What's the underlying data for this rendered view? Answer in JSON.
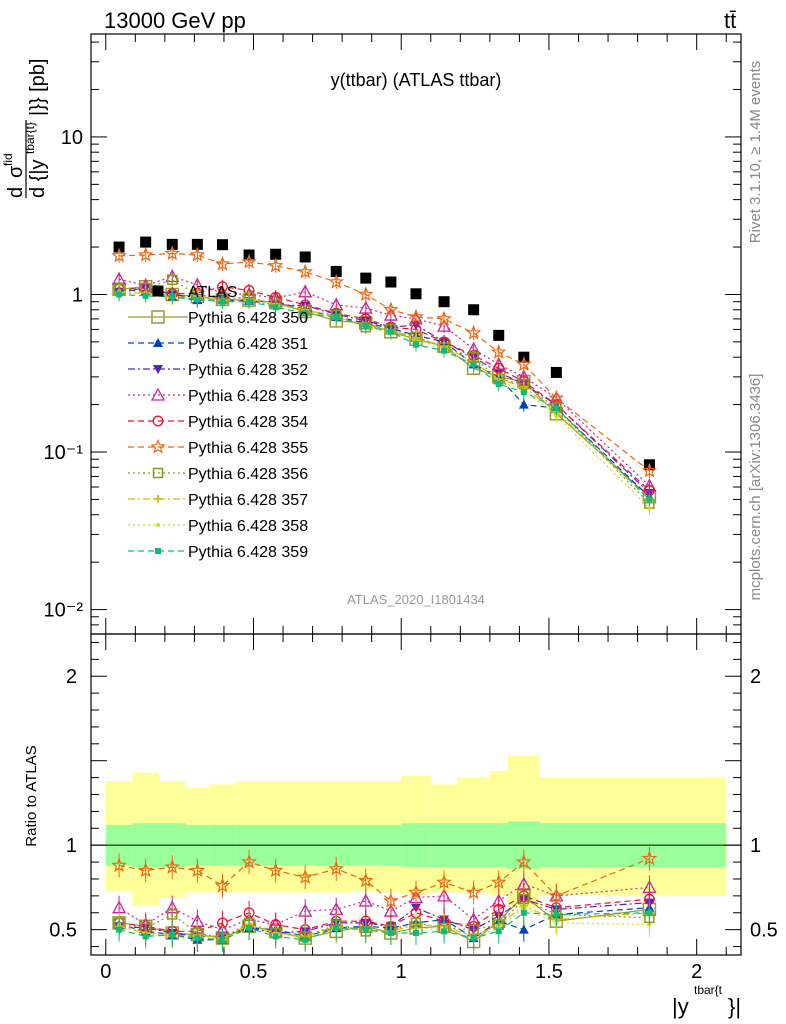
{
  "header": {
    "energy_label": "13000 GeV pp",
    "process_label": "tt̄"
  },
  "side_labels": {
    "rivet": "Rivet 3.1.10, ≥ 1.4M events",
    "source": "mcplots.cern.ch [arXiv:1306.3436]"
  },
  "chart_data": [
    {
      "type": "scatter",
      "title": "y(ttbar) (ATLAS ttbar)",
      "analysis_id": "ATLAS_2020_I1801434",
      "xlabel": "|y^{tbar{t}}|",
      "ylabel": "dσ^{fid} / d{|y^{tbar{t}}|} [pb]",
      "y_scale": "log",
      "xlim": [
        -0.05,
        2.15
      ],
      "ylim": [
        0.007,
        45
      ],
      "y_tick_labels": [
        "10⁻²",
        "10⁻¹",
        "1",
        "10"
      ],
      "x_tick_labels": [
        "0",
        "0.5",
        "1",
        "1.5",
        "2"
      ],
      "legend_position": "left-middle",
      "x": [
        0.045,
        0.135,
        0.225,
        0.31,
        0.395,
        0.485,
        0.575,
        0.675,
        0.78,
        0.88,
        0.965,
        1.05,
        1.145,
        1.245,
        1.33,
        1.415,
        1.525,
        1.84
      ],
      "series": [
        {
          "name": "ATLAS",
          "color": "#000000",
          "marker": "square-filled",
          "line": "none",
          "values": [
            2.0,
            2.15,
            2.08,
            2.08,
            2.07,
            1.78,
            1.8,
            1.73,
            1.4,
            1.27,
            1.2,
            1.01,
            0.9,
            0.8,
            0.55,
            0.4,
            0.32,
            0.083
          ]
        },
        {
          "name": "Pythia 6.428 350",
          "color": "#999933",
          "marker": "square-open-large",
          "line": "solid",
          "values": [
            1.08,
            1.12,
            1.0,
            0.97,
            0.93,
            0.92,
            0.89,
            0.78,
            0.68,
            0.66,
            0.58,
            0.52,
            0.47,
            0.34,
            0.3,
            0.28,
            0.175,
            0.052
          ]
        },
        {
          "name": "Pythia 6.428 351",
          "color": "#0044bb",
          "marker": "triangle-up-filled",
          "line": "dashed",
          "values": [
            1.07,
            1.05,
            0.97,
            0.92,
            0.92,
            0.91,
            0.9,
            0.8,
            0.72,
            0.66,
            0.61,
            0.55,
            0.5,
            0.36,
            0.3,
            0.2,
            0.19,
            0.052
          ]
        },
        {
          "name": "Pythia 6.428 352",
          "color": "#5522bb",
          "marker": "triangle-down-filled",
          "line": "dashdot",
          "values": [
            1.04,
            1.1,
            1.0,
            0.95,
            0.94,
            0.91,
            0.86,
            0.85,
            0.75,
            0.68,
            0.62,
            0.64,
            0.5,
            0.4,
            0.32,
            0.27,
            0.2,
            0.055
          ]
        },
        {
          "name": "Pythia 6.428 353",
          "color": "#cc2299",
          "marker": "triangle-up-open",
          "line": "dotted",
          "values": [
            1.25,
            1.14,
            1.3,
            1.15,
            1.02,
            1.0,
            0.95,
            1.04,
            0.86,
            0.82,
            0.74,
            0.7,
            0.63,
            0.45,
            0.36,
            0.3,
            0.22,
            0.061
          ]
        },
        {
          "name": "Pythia 6.428 354",
          "color": "#ee1133",
          "marker": "circle-open",
          "line": "dashed",
          "values": [
            1.08,
            1.1,
            1.01,
            1.02,
            1.12,
            1.06,
            0.96,
            0.86,
            0.76,
            0.7,
            0.62,
            0.6,
            0.5,
            0.41,
            0.34,
            0.28,
            0.2,
            0.057
          ]
        },
        {
          "name": "Pythia 6.428 355",
          "color": "#ee6611",
          "marker": "star-open",
          "line": "dashed",
          "values": [
            1.76,
            1.78,
            1.82,
            1.78,
            1.56,
            1.61,
            1.52,
            1.39,
            1.2,
            1.0,
            0.8,
            0.72,
            0.7,
            0.57,
            0.43,
            0.36,
            0.22,
            0.076
          ]
        },
        {
          "name": "Pythia 6.428 356",
          "color": "#889922",
          "marker": "square-open",
          "line": "dotted",
          "values": [
            1.08,
            1.1,
            1.24,
            1.0,
            0.94,
            0.96,
            0.87,
            0.79,
            0.74,
            0.62,
            0.6,
            0.54,
            0.46,
            0.4,
            0.29,
            0.27,
            0.19,
            0.047
          ]
        },
        {
          "name": "Pythia 6.428 357",
          "color": "#ddbb00",
          "marker": "plus",
          "line": "dashdot",
          "values": [
            1.03,
            1.02,
            0.95,
            0.98,
            0.92,
            0.94,
            0.87,
            0.8,
            0.72,
            0.64,
            0.59,
            0.53,
            0.47,
            0.37,
            0.29,
            0.26,
            0.18,
            0.05
          ]
        },
        {
          "name": "Pythia 6.428 358",
          "color": "#ccdd22",
          "marker": "dot",
          "line": "dotted",
          "values": [
            1.05,
            1.03,
            0.97,
            0.96,
            0.92,
            0.92,
            0.86,
            0.78,
            0.72,
            0.63,
            0.57,
            0.52,
            0.45,
            0.36,
            0.28,
            0.25,
            0.17,
            0.044
          ]
        },
        {
          "name": "Pythia 6.428 359",
          "color": "#11bb77",
          "marker": "square-filled-small",
          "line": "dashed",
          "values": [
            1.0,
            0.98,
            0.97,
            0.93,
            0.9,
            0.9,
            0.83,
            0.76,
            0.72,
            0.63,
            0.58,
            0.48,
            0.44,
            0.36,
            0.27,
            0.24,
            0.19,
            0.05
          ]
        }
      ]
    },
    {
      "type": "scatter",
      "title": "",
      "ylabel": "Ratio to ATLAS",
      "xlabel": "|y^{tbar{t}}|",
      "ylim": [
        0.35,
        2.25
      ],
      "y_tick_labels": [
        "0.5",
        "1",
        "2"
      ],
      "reference_line": 1,
      "bin_edges": [
        0.0,
        0.09,
        0.18,
        0.27,
        0.35,
        0.44,
        0.53,
        0.62,
        0.73,
        0.83,
        0.93,
        1.0,
        1.1,
        1.19,
        1.3,
        1.36,
        1.47,
        1.58,
        2.1
      ],
      "band_inner": [
        [
          0.88,
          1.12
        ],
        [
          0.87,
          1.13
        ],
        [
          0.87,
          1.13
        ],
        [
          0.88,
          1.12
        ],
        [
          0.88,
          1.12
        ],
        [
          0.88,
          1.12
        ],
        [
          0.88,
          1.12
        ],
        [
          0.88,
          1.12
        ],
        [
          0.88,
          1.12
        ],
        [
          0.88,
          1.12
        ],
        [
          0.88,
          1.12
        ],
        [
          0.87,
          1.13
        ],
        [
          0.87,
          1.13
        ],
        [
          0.87,
          1.13
        ],
        [
          0.87,
          1.13
        ],
        [
          0.86,
          1.14
        ],
        [
          0.87,
          1.13
        ],
        [
          0.87,
          1.13
        ]
      ],
      "band_outer": [
        [
          0.73,
          1.38
        ],
        [
          0.64,
          1.43
        ],
        [
          0.69,
          1.38
        ],
        [
          0.72,
          1.34
        ],
        [
          0.72,
          1.36
        ],
        [
          0.72,
          1.38
        ],
        [
          0.72,
          1.38
        ],
        [
          0.72,
          1.38
        ],
        [
          0.72,
          1.38
        ],
        [
          0.73,
          1.38
        ],
        [
          0.72,
          1.38
        ],
        [
          0.71,
          1.41
        ],
        [
          0.72,
          1.36
        ],
        [
          0.72,
          1.4
        ],
        [
          0.7,
          1.44
        ],
        [
          0.63,
          1.53
        ],
        [
          0.7,
          1.4
        ],
        [
          0.7,
          1.4
        ]
      ],
      "series_ratio": [
        [
          0.54,
          0.52,
          0.48,
          0.47,
          0.45,
          0.52,
          0.49,
          0.45,
          0.49,
          0.52,
          0.48,
          0.51,
          0.52,
          0.43,
          0.55,
          0.7,
          0.55,
          0.62
        ],
        [
          0.53,
          0.49,
          0.47,
          0.44,
          0.44,
          0.51,
          0.5,
          0.46,
          0.51,
          0.52,
          0.51,
          0.54,
          0.56,
          0.45,
          0.55,
          0.5,
          0.59,
          0.63
        ],
        [
          0.52,
          0.51,
          0.48,
          0.46,
          0.46,
          0.51,
          0.48,
          0.49,
          0.54,
          0.54,
          0.52,
          0.63,
          0.56,
          0.5,
          0.58,
          0.68,
          0.62,
          0.66
        ],
        [
          0.63,
          0.53,
          0.63,
          0.55,
          0.5,
          0.56,
          0.53,
          0.61,
          0.62,
          0.67,
          0.61,
          0.69,
          0.7,
          0.56,
          0.67,
          0.77,
          0.7,
          0.75
        ],
        [
          0.54,
          0.52,
          0.49,
          0.49,
          0.54,
          0.6,
          0.53,
          0.5,
          0.55,
          0.55,
          0.52,
          0.6,
          0.55,
          0.52,
          0.62,
          0.7,
          0.63,
          0.68
        ],
        [
          0.88,
          0.85,
          0.87,
          0.85,
          0.76,
          0.9,
          0.85,
          0.81,
          0.86,
          0.79,
          0.67,
          0.72,
          0.78,
          0.72,
          0.78,
          0.9,
          0.7,
          0.92
        ],
        [
          0.54,
          0.51,
          0.59,
          0.48,
          0.45,
          0.54,
          0.48,
          0.46,
          0.53,
          0.49,
          0.5,
          0.54,
          0.51,
          0.5,
          0.53,
          0.68,
          0.59,
          0.57
        ],
        [
          0.52,
          0.48,
          0.46,
          0.47,
          0.45,
          0.53,
          0.48,
          0.46,
          0.52,
          0.5,
          0.49,
          0.53,
          0.52,
          0.46,
          0.53,
          0.64,
          0.56,
          0.6
        ],
        [
          0.53,
          0.48,
          0.47,
          0.46,
          0.44,
          0.52,
          0.48,
          0.45,
          0.51,
          0.5,
          0.48,
          0.51,
          0.5,
          0.45,
          0.51,
          0.63,
          0.54,
          0.53
        ],
        [
          0.5,
          0.46,
          0.47,
          0.45,
          0.44,
          0.51,
          0.46,
          0.44,
          0.51,
          0.5,
          0.48,
          0.48,
          0.49,
          0.45,
          0.49,
          0.6,
          0.59,
          0.6
        ]
      ]
    }
  ]
}
